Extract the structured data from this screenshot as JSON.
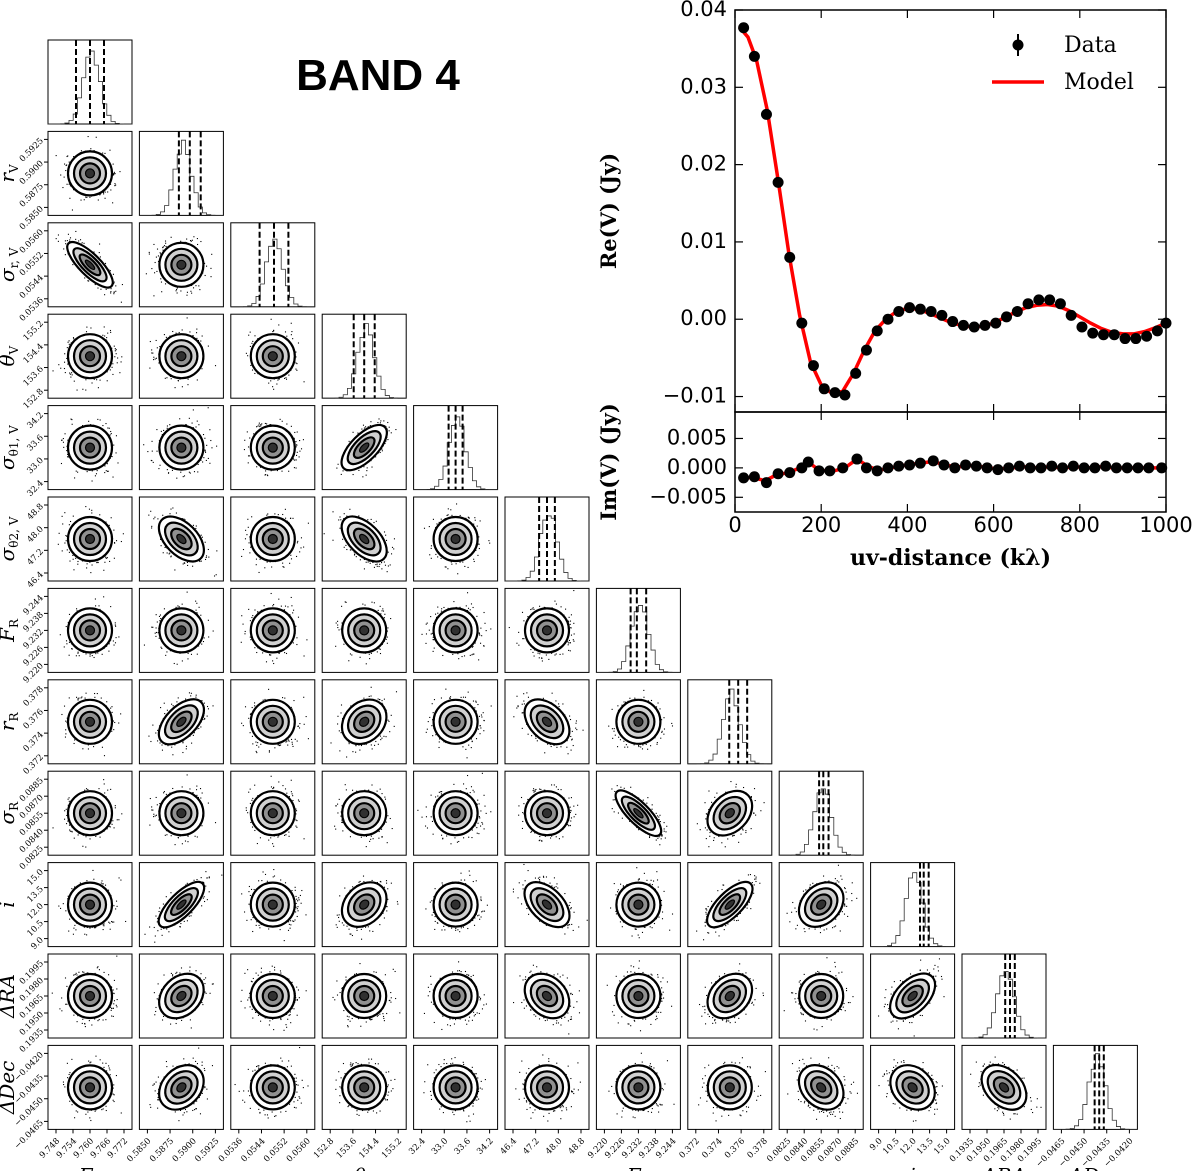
{
  "title": "BAND 4",
  "chart_data": [
    {
      "type": "scatter",
      "kind": "corner-plot",
      "parameters": [
        {
          "key": "F_V",
          "label": "F",
          "sub": "V",
          "ticks": [
            "9.748",
            "9.754",
            "9.760",
            "9.766",
            "9.772"
          ],
          "ytick_labels": null,
          "median": 9.76,
          "lo": 9.755,
          "hi": 9.765,
          "range": [
            9.745,
            9.775
          ]
        },
        {
          "key": "r_V",
          "label": "r",
          "sub": "V",
          "ticks": [
            "0.5850",
            "0.5875",
            "0.5900",
            "0.5925"
          ],
          "median": 0.59,
          "lo": 0.5887,
          "hi": 0.5913,
          "range": [
            0.584,
            0.594
          ]
        },
        {
          "key": "sigma_r_V",
          "label": "σ",
          "sub": "r, V",
          "ticks": [
            "0.0536",
            "0.0544",
            "0.0552",
            "0.0560"
          ],
          "median": 0.0548,
          "lo": 0.0542,
          "hi": 0.0554,
          "range": [
            0.053,
            0.0565
          ]
        },
        {
          "key": "theta_V",
          "label": "θ",
          "sub": "V",
          "ticks": [
            "152.8",
            "153.6",
            "154.4",
            "155.2"
          ],
          "median": 153.9,
          "lo": 153.5,
          "hi": 154.3,
          "range": [
            152.3,
            155.5
          ]
        },
        {
          "key": "sigma_theta1_V",
          "label": "σ",
          "sub": "θ1, V",
          "ticks": [
            "32.4",
            "33.0",
            "33.6",
            "34.2"
          ],
          "median": 33.4,
          "lo": 33.2,
          "hi": 33.6,
          "range": [
            32.2,
            34.6
          ]
        },
        {
          "key": "sigma_theta2_V",
          "label": "σ",
          "sub": "θ2, V",
          "ticks": [
            "46.4",
            "47.2",
            "48.0",
            "48.8"
          ],
          "median": 47.6,
          "lo": 47.3,
          "hi": 47.9,
          "range": [
            46.0,
            49.2
          ]
        },
        {
          "key": "F_R",
          "label": "F",
          "sub": "R",
          "ticks": [
            "9.220",
            "9.226",
            "9.232",
            "9.238",
            "9.244"
          ],
          "median": 9.231,
          "lo": 9.229,
          "hi": 9.234,
          "range": [
            9.218,
            9.245
          ]
        },
        {
          "key": "r_R",
          "label": "r",
          "sub": "R",
          "ticks": [
            "0.372",
            "0.374",
            "0.376",
            "0.378"
          ],
          "median": 0.376,
          "lo": 0.3752,
          "hi": 0.3768,
          "range": [
            0.3715,
            0.379
          ]
        },
        {
          "key": "sigma_R",
          "label": "σ",
          "sub": "R",
          "ticks": [
            "0.0825",
            "0.0840",
            "0.0855",
            "0.0870",
            "0.0885"
          ],
          "median": 0.0857,
          "lo": 0.0853,
          "hi": 0.0862,
          "range": [
            0.0815,
            0.0895
          ]
        },
        {
          "key": "i",
          "label": "i",
          "sub": "",
          "ticks": [
            "9.0",
            "10.5",
            "12.0",
            "13.5",
            "15.0"
          ],
          "median": 12.9,
          "lo": 12.6,
          "hi": 13.3,
          "range": [
            8.6,
            15.4
          ]
        },
        {
          "key": "dRA",
          "label": "ΔRA",
          "sub": "",
          "ticks": [
            "0.1935",
            "0.1950",
            "0.1965",
            "0.1980",
            "0.1995"
          ],
          "median": 0.197,
          "lo": 0.1966,
          "hi": 0.1974,
          "range": [
            0.193,
            0.2
          ]
        },
        {
          "key": "dDec",
          "label": "ΔDec",
          "sub": "",
          "ticks": [
            "−0.0465",
            "−0.0450",
            "−0.0435",
            "−0.0420"
          ],
          "median": -0.044,
          "lo": -0.0443,
          "hi": -0.0437,
          "range": [
            -0.047,
            -0.0415
          ]
        }
      ],
      "ytick_labels": {
        "r_V": [
          "0.5850",
          "0.5875",
          "0.5900",
          "0.5925"
        ],
        "sigma_r_V": [
          "0.0536",
          "0.0544",
          "0.0552",
          "0.0560"
        ],
        "theta_V": [
          "152.8",
          "153.6",
          "154.4",
          "155.2"
        ],
        "sigma_theta1_V": [
          "32.4",
          "33.0",
          "33.6",
          "34.2"
        ],
        "sigma_theta2_V": [
          "46.4",
          "47.2",
          "48.0",
          "48.8"
        ],
        "F_R": [
          "9.220",
          "9.226",
          "9.232",
          "9.238",
          "9.244"
        ],
        "r_R": [
          "0.372",
          "0.374",
          "0.376",
          "0.378"
        ],
        "sigma_R": [
          "0.0825",
          "0.0840",
          "0.0855",
          "0.0870",
          "0.0885"
        ],
        "i": [
          "9.0",
          "10.5",
          "12.0",
          "13.5",
          "15.0"
        ],
        "dRA": [
          "0.1935",
          "0.1950",
          "0.1965",
          "0.1980",
          "0.1995"
        ],
        "dDec": [
          "−0.0465",
          "−0.0450",
          "−0.0435",
          "−0.0420"
        ]
      },
      "correlations": [
        {
          "row": "sigma_r_V",
          "col": "F_V",
          "rho": -0.9
        },
        {
          "row": "sigma_theta1_V",
          "col": "theta_V",
          "rho": 0.75
        },
        {
          "row": "sigma_theta2_V",
          "col": "r_V",
          "rho": -0.55
        },
        {
          "row": "sigma_theta2_V",
          "col": "theta_V",
          "rho": -0.6
        },
        {
          "row": "r_R",
          "col": "r_V",
          "rho": 0.6
        },
        {
          "row": "r_R",
          "col": "sigma_theta2_V",
          "rho": -0.45
        },
        {
          "row": "r_R",
          "col": "theta_V",
          "rho": 0.25
        },
        {
          "row": "sigma_R",
          "col": "F_R",
          "rho": -0.9
        },
        {
          "row": "sigma_R",
          "col": "r_R",
          "rho": 0.35
        },
        {
          "row": "i",
          "col": "r_V",
          "rho": 0.85
        },
        {
          "row": "i",
          "col": "r_R",
          "rho": 0.8
        },
        {
          "row": "i",
          "col": "sigma_theta2_V",
          "rho": -0.55
        },
        {
          "row": "i",
          "col": "theta_V",
          "rho": 0.3
        },
        {
          "row": "i",
          "col": "sigma_R",
          "rho": 0.3
        },
        {
          "row": "dRA",
          "col": "i",
          "rho": 0.55
        },
        {
          "row": "dRA",
          "col": "r_V",
          "rho": 0.3
        },
        {
          "row": "dRA",
          "col": "sigma_theta2_V",
          "rho": -0.3
        },
        {
          "row": "dRA",
          "col": "r_R",
          "rho": 0.3
        },
        {
          "row": "dDec",
          "col": "dRA",
          "rho": -0.4
        },
        {
          "row": "dDec",
          "col": "sigma_R",
          "rho": -0.3
        },
        {
          "row": "dDec",
          "col": "r_V",
          "rho": 0.3
        },
        {
          "row": "dDec",
          "col": "i",
          "rho": -0.25
        }
      ]
    },
    {
      "type": "scatter",
      "kind": "visibility-profile",
      "xlabel": "uv-distance (kλ)",
      "xlim": [
        0,
        1000
      ],
      "xticks": [
        "0",
        "200",
        "400",
        "600",
        "800",
        "1000"
      ],
      "legend": {
        "placement": "top-right",
        "data_label": "Data",
        "model_label": "Model"
      },
      "colors": {
        "data": "#000000",
        "model": "#ff0000"
      },
      "real": {
        "ylabel": "Re(V) (Jy)",
        "ylim": [
          -0.012,
          0.04
        ],
        "yticks": [
          "−0.01",
          "0.00",
          "0.01",
          "0.02",
          "0.03",
          "0.04"
        ],
        "data": [
          [
            20,
            0.0377
          ],
          [
            45,
            0.034
          ],
          [
            73,
            0.0265
          ],
          [
            100,
            0.0177
          ],
          [
            127,
            0.008
          ],
          [
            155,
            -0.0005
          ],
          [
            182,
            -0.006
          ],
          [
            207,
            -0.009
          ],
          [
            232,
            -0.0095
          ],
          [
            255,
            -0.0098
          ],
          [
            280,
            -0.007
          ],
          [
            305,
            -0.004
          ],
          [
            330,
            -0.0015
          ],
          [
            355,
            0.0
          ],
          [
            380,
            0.001
          ],
          [
            405,
            0.0015
          ],
          [
            430,
            0.0013
          ],
          [
            455,
            0.001
          ],
          [
            480,
            0.0005
          ],
          [
            505,
            -0.0003
          ],
          [
            530,
            -0.0008
          ],
          [
            555,
            -0.001
          ],
          [
            580,
            -0.0008
          ],
          [
            605,
            -0.0005
          ],
          [
            630,
            0.0003
          ],
          [
            655,
            0.001
          ],
          [
            680,
            0.002
          ],
          [
            705,
            0.0025
          ],
          [
            730,
            0.0025
          ],
          [
            755,
            0.002
          ],
          [
            780,
            0.0005
          ],
          [
            805,
            -0.001
          ],
          [
            830,
            -0.0018
          ],
          [
            855,
            -0.002
          ],
          [
            880,
            -0.002
          ],
          [
            905,
            -0.0025
          ],
          [
            930,
            -0.0025
          ],
          [
            955,
            -0.0022
          ],
          [
            980,
            -0.0015
          ],
          [
            1000,
            -0.0005
          ]
        ],
        "model": [
          [
            10,
            0.0378
          ],
          [
            30,
            0.0365
          ],
          [
            50,
            0.0335
          ],
          [
            75,
            0.027
          ],
          [
            100,
            0.018
          ],
          [
            125,
            0.0085
          ],
          [
            150,
            0.0005
          ],
          [
            175,
            -0.0055
          ],
          [
            200,
            -0.0085
          ],
          [
            225,
            -0.0096
          ],
          [
            250,
            -0.0093
          ],
          [
            275,
            -0.007
          ],
          [
            300,
            -0.004
          ],
          [
            325,
            -0.0015
          ],
          [
            350,
            0.0
          ],
          [
            375,
            0.001
          ],
          [
            400,
            0.0014
          ],
          [
            425,
            0.0013
          ],
          [
            450,
            0.0008
          ],
          [
            475,
            0.0002
          ],
          [
            500,
            -0.0004
          ],
          [
            525,
            -0.0008
          ],
          [
            550,
            -0.001
          ],
          [
            575,
            -0.0009
          ],
          [
            600,
            -0.0005
          ],
          [
            625,
            0.0002
          ],
          [
            650,
            0.0009
          ],
          [
            675,
            0.0015
          ],
          [
            700,
            0.0018
          ],
          [
            725,
            0.0019
          ],
          [
            750,
            0.0017
          ],
          [
            775,
            0.0011
          ],
          [
            800,
            0.0003
          ],
          [
            825,
            -0.0005
          ],
          [
            850,
            -0.0012
          ],
          [
            875,
            -0.0017
          ],
          [
            900,
            -0.0019
          ],
          [
            925,
            -0.0019
          ],
          [
            950,
            -0.0016
          ],
          [
            975,
            -0.0011
          ],
          [
            1000,
            -0.0005
          ]
        ]
      },
      "imag": {
        "ylabel": "Im(V) (Jy)",
        "ylim": [
          -0.0075,
          0.0095
        ],
        "yticks": [
          "−0.005",
          "0.000",
          "0.005"
        ],
        "data": [
          [
            20,
            -0.0017
          ],
          [
            45,
            -0.0015
          ],
          [
            73,
            -0.0025
          ],
          [
            100,
            -0.001
          ],
          [
            127,
            -0.0008
          ],
          [
            155,
            0.0
          ],
          [
            170,
            0.001
          ],
          [
            195,
            -0.0005
          ],
          [
            220,
            -0.0005
          ],
          [
            250,
            0.0
          ],
          [
            283,
            0.0015
          ],
          [
            305,
            0.0
          ],
          [
            330,
            -0.0005
          ],
          [
            355,
            0.0
          ],
          [
            380,
            0.0003
          ],
          [
            405,
            0.0005
          ],
          [
            430,
            0.0008
          ],
          [
            460,
            0.0012
          ],
          [
            485,
            0.0005
          ],
          [
            510,
            0.0
          ],
          [
            535,
            0.0005
          ],
          [
            560,
            0.0003
          ],
          [
            585,
            0.0
          ],
          [
            610,
            -0.0003
          ],
          [
            635,
            0.0
          ],
          [
            660,
            0.0003
          ],
          [
            685,
            0.0
          ],
          [
            710,
            0.0
          ],
          [
            735,
            0.0003
          ],
          [
            760,
            0.0
          ],
          [
            785,
            0.0003
          ],
          [
            810,
            0.0
          ],
          [
            835,
            0.0
          ],
          [
            860,
            0.0003
          ],
          [
            885,
            0.0
          ],
          [
            910,
            0.0
          ],
          [
            935,
            0.0
          ],
          [
            960,
            0.0
          ],
          [
            990,
            0.0
          ]
        ],
        "model": [
          [
            10,
            -0.0018
          ],
          [
            40,
            -0.0016
          ],
          [
            70,
            -0.0022
          ],
          [
            95,
            -0.0012
          ],
          [
            125,
            -0.0008
          ],
          [
            150,
            0.0
          ],
          [
            170,
            0.001
          ],
          [
            195,
            -0.0004
          ],
          [
            225,
            -0.0006
          ],
          [
            255,
            0.0
          ],
          [
            283,
            0.0015
          ],
          [
            310,
            0.0002
          ],
          [
            335,
            -0.0004
          ],
          [
            360,
            0.0
          ],
          [
            390,
            0.0004
          ],
          [
            420,
            0.0007
          ],
          [
            460,
            0.0011
          ],
          [
            490,
            0.0004
          ],
          [
            520,
            0.0002
          ],
          [
            550,
            0.0004
          ],
          [
            580,
            0.0001
          ],
          [
            610,
            -0.0002
          ],
          [
            640,
            0.0
          ],
          [
            670,
            0.0002
          ],
          [
            700,
            0.0
          ],
          [
            730,
            0.0002
          ],
          [
            760,
            0.0
          ],
          [
            790,
            0.0002
          ],
          [
            820,
            0.0
          ],
          [
            850,
            0.0002
          ],
          [
            880,
            0.0
          ],
          [
            910,
            0.0
          ],
          [
            940,
            0.0
          ],
          [
            970,
            0.0
          ],
          [
            1000,
            0.0
          ]
        ]
      }
    }
  ]
}
